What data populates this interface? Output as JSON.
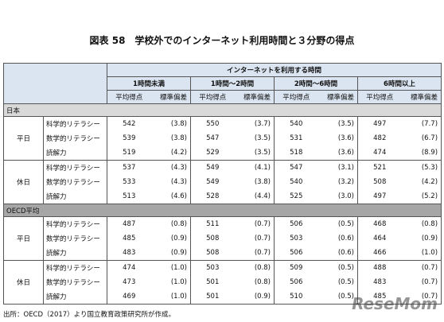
{
  "title": "図表 58　学校外でのインターネット利用時間と３分野の得点",
  "table": {
    "header": "インターネットを利用する時間",
    "groups": [
      "1時間未満",
      "1時間～2時間",
      "2時間～6時間",
      "6時間以上"
    ],
    "subheaders": [
      "平均得点",
      "標準偏差"
    ],
    "sections": [
      {
        "name": "日本",
        "days": [
          {
            "name": "平日",
            "rows": [
              {
                "label": "科学的リテラシー",
                "cells": [
                  [
                    542,
                    "(3.8)"
                  ],
                  [
                    550,
                    "(3.7)"
                  ],
                  [
                    540,
                    "(3.5)"
                  ],
                  [
                    497,
                    "(7.7)"
                  ]
                ]
              },
              {
                "label": "数学的リテラシー",
                "cells": [
                  [
                    539,
                    "(3.8)"
                  ],
                  [
                    547,
                    "(3.5)"
                  ],
                  [
                    531,
                    "(3.6)"
                  ],
                  [
                    482,
                    "(6.7)"
                  ]
                ]
              },
              {
                "label": "読解力",
                "cells": [
                  [
                    519,
                    "(4.2)"
                  ],
                  [
                    529,
                    "(3.5)"
                  ],
                  [
                    518,
                    "(3.6)"
                  ],
                  [
                    474,
                    "(8.9)"
                  ]
                ]
              }
            ]
          },
          {
            "name": "休日",
            "rows": [
              {
                "label": "科学的リテラシー",
                "cells": [
                  [
                    537,
                    "(4.3)"
                  ],
                  [
                    549,
                    "(4.1)"
                  ],
                  [
                    547,
                    "(3.1)"
                  ],
                  [
                    521,
                    "(5.3)"
                  ]
                ]
              },
              {
                "label": "数学的リテラシー",
                "cells": [
                  [
                    533,
                    "(4.3)"
                  ],
                  [
                    549,
                    "(3.8)"
                  ],
                  [
                    540,
                    "(3.2)"
                  ],
                  [
                    508,
                    "(4.2)"
                  ]
                ]
              },
              {
                "label": "読解力",
                "cells": [
                  [
                    513,
                    "(4.6)"
                  ],
                  [
                    528,
                    "(4.4)"
                  ],
                  [
                    525,
                    "(3.0)"
                  ],
                  [
                    497,
                    "(5.2)"
                  ]
                ]
              }
            ]
          }
        ]
      },
      {
        "name": "OECD平均",
        "days": [
          {
            "name": "平日",
            "rows": [
              {
                "label": "科学的リテラシー",
                "cells": [
                  [
                    487,
                    "(0.8)"
                  ],
                  [
                    511,
                    "(0.7)"
                  ],
                  [
                    506,
                    "(0.5)"
                  ],
                  [
                    468,
                    "(0.8)"
                  ]
                ]
              },
              {
                "label": "数学的リテラシー",
                "cells": [
                  [
                    485,
                    "(0.9)"
                  ],
                  [
                    508,
                    "(0.7)"
                  ],
                  [
                    503,
                    "(0.6)"
                  ],
                  [
                    464,
                    "(0.9)"
                  ]
                ]
              },
              {
                "label": "読解力",
                "cells": [
                  [
                    483,
                    "(0.9)"
                  ],
                  [
                    508,
                    "(0.7)"
                  ],
                  [
                    506,
                    "(0.6)"
                  ],
                  [
                    466,
                    "(1.0)"
                  ]
                ]
              }
            ]
          },
          {
            "name": "休日",
            "rows": [
              {
                "label": "科学的リテラシー",
                "cells": [
                  [
                    474,
                    "(1.0)"
                  ],
                  [
                    503,
                    "(0.8)"
                  ],
                  [
                    509,
                    "(0.5)"
                  ],
                  [
                    488,
                    "(0.7)"
                  ]
                ]
              },
              {
                "label": "数学的リテラシー",
                "cells": [
                  [
                    473,
                    "(1.0)"
                  ],
                  [
                    501,
                    "(0.8)"
                  ],
                  [
                    506,
                    "(0.5)"
                  ],
                  [
                    483,
                    "(0.7)"
                  ]
                ]
              },
              {
                "label": "読解力",
                "cells": [
                  [
                    469,
                    "(1.0)"
                  ],
                  [
                    501,
                    "(0.9)"
                  ],
                  [
                    510,
                    "(0.5)"
                  ],
                  [
                    485,
                    "(0.7)"
                  ]
                ]
              }
            ]
          }
        ]
      }
    ]
  },
  "source": "出所：OECD（2017）より国立教育政策研究所が作成。",
  "watermark": "ReseMom"
}
